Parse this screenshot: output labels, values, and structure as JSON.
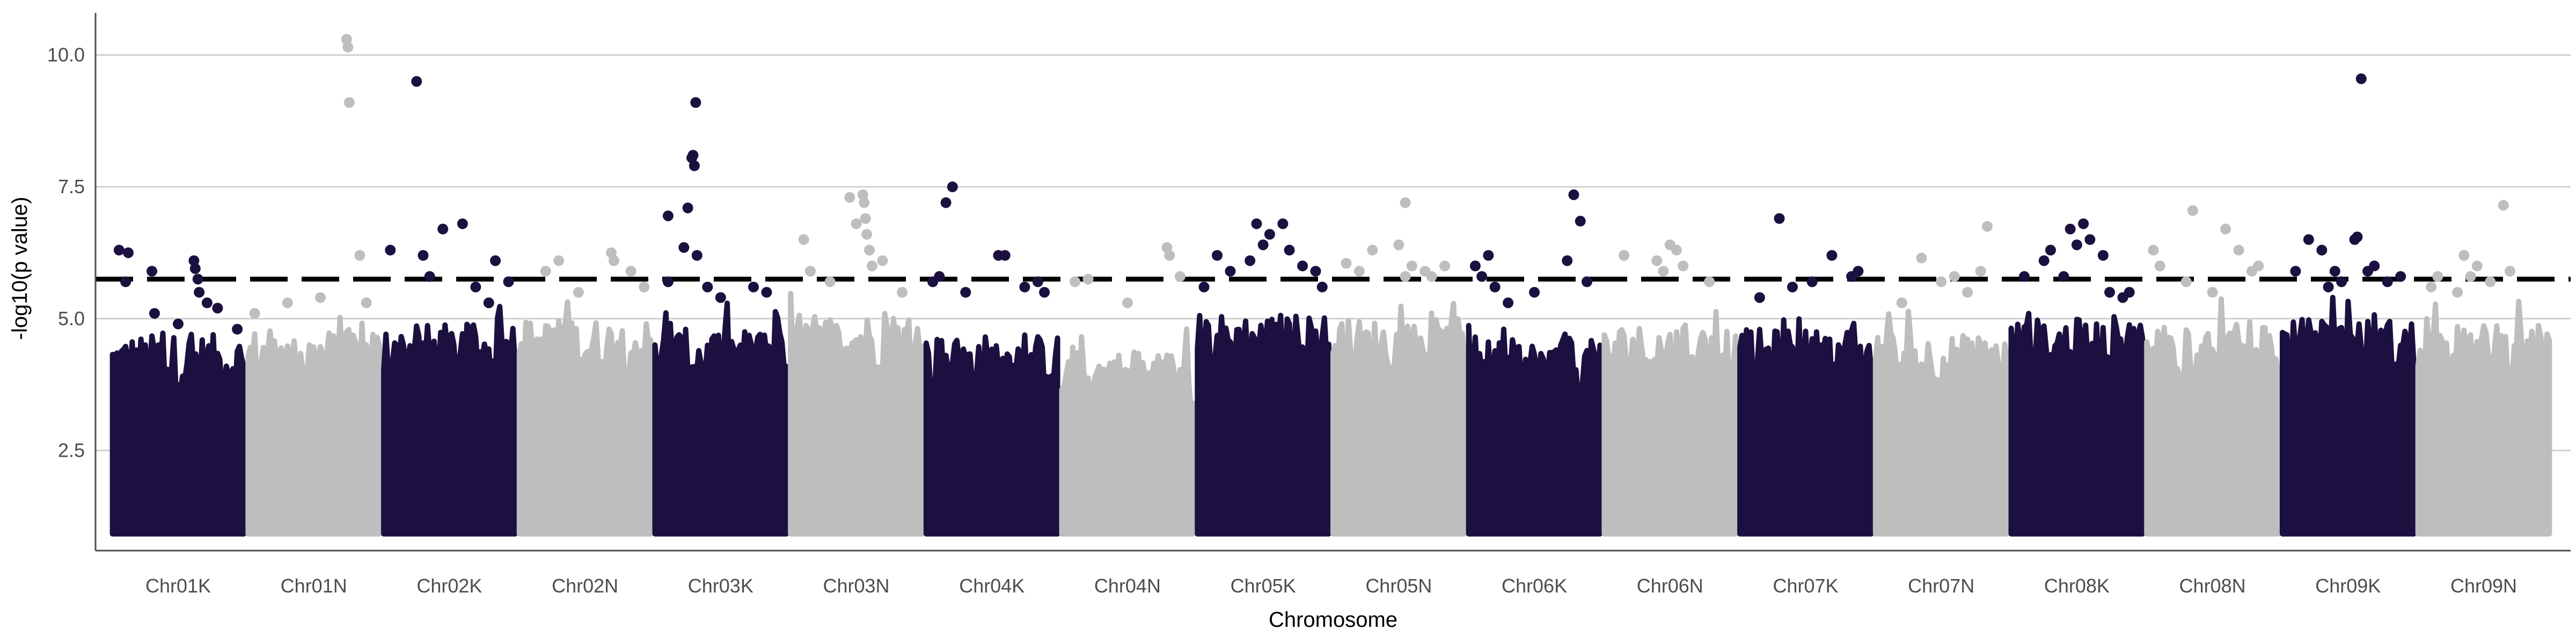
{
  "chart_data": {
    "type": "scatter",
    "title": "",
    "xlabel": "Chromosome",
    "ylabel": "-log10(p value)",
    "ylim": [
      0.6,
      10.8
    ],
    "yticks": [
      2.5,
      5.0,
      7.5,
      10.0
    ],
    "ytick_labels": [
      "2.5",
      "5.0",
      "7.5",
      "10.0"
    ],
    "threshold": 5.75,
    "grid": "horizontal major lines",
    "legend": "none",
    "colors": {
      "odd": "#1c1040",
      "even": "#bebebe",
      "threshold_line": "#000000"
    },
    "categories": [
      "Chr01K",
      "Chr01N",
      "Chr02K",
      "Chr02N",
      "Chr03K",
      "Chr03N",
      "Chr04K",
      "Chr04N",
      "Chr05K",
      "Chr05N",
      "Chr06K",
      "Chr06N",
      "Chr07K",
      "Chr07N",
      "Chr08K",
      "Chr08N",
      "Chr09K",
      "Chr09N"
    ],
    "series": [
      {
        "chromosome": "Chr01K",
        "color": "odd",
        "bulk_top": 4.5,
        "points": [
          [
            0.05,
            6.3
          ],
          [
            0.1,
            5.7
          ],
          [
            0.12,
            6.25
          ],
          [
            0.3,
            5.9
          ],
          [
            0.32,
            5.1
          ],
          [
            0.5,
            4.9
          ],
          [
            0.62,
            6.1
          ],
          [
            0.63,
            5.95
          ],
          [
            0.65,
            5.75
          ],
          [
            0.66,
            5.5
          ],
          [
            0.72,
            5.3
          ],
          [
            0.8,
            5.2
          ],
          [
            0.95,
            4.8
          ]
        ]
      },
      {
        "chromosome": "Chr01N",
        "color": "even",
        "bulk_top": 4.6,
        "points": [
          [
            0.05,
            5.1
          ],
          [
            0.3,
            5.3
          ],
          [
            0.55,
            5.4
          ],
          [
            0.75,
            10.3
          ],
          [
            0.76,
            10.15
          ],
          [
            0.77,
            9.1
          ],
          [
            0.85,
            6.2
          ],
          [
            0.9,
            5.3
          ]
        ]
      },
      {
        "chromosome": "Chr02K",
        "color": "odd",
        "bulk_top": 4.7,
        "points": [
          [
            0.05,
            6.3
          ],
          [
            0.25,
            9.5
          ],
          [
            0.3,
            6.2
          ],
          [
            0.35,
            5.8
          ],
          [
            0.45,
            6.7
          ],
          [
            0.6,
            6.8
          ],
          [
            0.7,
            5.6
          ],
          [
            0.8,
            5.3
          ],
          [
            0.85,
            6.1
          ],
          [
            0.95,
            5.7
          ]
        ]
      },
      {
        "chromosome": "Chr02N",
        "color": "even",
        "bulk_top": 4.8,
        "points": [
          [
            0.2,
            5.9
          ],
          [
            0.3,
            6.1
          ],
          [
            0.45,
            5.5
          ],
          [
            0.7,
            6.25
          ],
          [
            0.72,
            6.1
          ],
          [
            0.85,
            5.9
          ],
          [
            0.95,
            5.6
          ]
        ]
      },
      {
        "chromosome": "Chr03K",
        "color": "odd",
        "bulk_top": 4.6,
        "points": [
          [
            0.1,
            6.95
          ],
          [
            0.1,
            5.7
          ],
          [
            0.22,
            6.35
          ],
          [
            0.25,
            7.1
          ],
          [
            0.28,
            8.05
          ],
          [
            0.29,
            8.1
          ],
          [
            0.3,
            7.9
          ],
          [
            0.31,
            9.1
          ],
          [
            0.32,
            6.2
          ],
          [
            0.4,
            5.6
          ],
          [
            0.5,
            5.4
          ],
          [
            0.75,
            5.6
          ],
          [
            0.85,
            5.5
          ]
        ]
      },
      {
        "chromosome": "Chr03N",
        "color": "even",
        "bulk_top": 4.9,
        "points": [
          [
            0.1,
            6.5
          ],
          [
            0.15,
            5.9
          ],
          [
            0.3,
            5.7
          ],
          [
            0.45,
            7.3
          ],
          [
            0.5,
            6.8
          ],
          [
            0.55,
            7.35
          ],
          [
            0.56,
            7.2
          ],
          [
            0.57,
            6.9
          ],
          [
            0.58,
            6.6
          ],
          [
            0.6,
            6.3
          ],
          [
            0.62,
            6.0
          ],
          [
            0.7,
            6.1
          ],
          [
            0.85,
            5.5
          ]
        ]
      },
      {
        "chromosome": "Chr04K",
        "color": "odd",
        "bulk_top": 4.5,
        "points": [
          [
            0.05,
            5.7
          ],
          [
            0.1,
            5.8
          ],
          [
            0.15,
            7.2
          ],
          [
            0.2,
            7.5
          ],
          [
            0.3,
            5.5
          ],
          [
            0.55,
            6.2
          ],
          [
            0.6,
            6.2
          ],
          [
            0.75,
            5.6
          ],
          [
            0.85,
            5.7
          ],
          [
            0.9,
            5.5
          ]
        ]
      },
      {
        "chromosome": "Chr04N",
        "color": "even",
        "bulk_top": 4.2,
        "points": [
          [
            0.1,
            5.7
          ],
          [
            0.2,
            5.75
          ],
          [
            0.5,
            5.3
          ],
          [
            0.8,
            6.35
          ],
          [
            0.82,
            6.2
          ],
          [
            0.9,
            5.8
          ]
        ]
      },
      {
        "chromosome": "Chr05K",
        "color": "odd",
        "bulk_top": 4.9,
        "points": [
          [
            0.05,
            5.6
          ],
          [
            0.15,
            6.2
          ],
          [
            0.25,
            5.9
          ],
          [
            0.4,
            6.1
          ],
          [
            0.45,
            6.8
          ],
          [
            0.5,
            6.4
          ],
          [
            0.55,
            6.6
          ],
          [
            0.65,
            6.8
          ],
          [
            0.7,
            6.3
          ],
          [
            0.8,
            6.0
          ],
          [
            0.9,
            5.9
          ],
          [
            0.95,
            5.6
          ]
        ]
      },
      {
        "chromosome": "Chr05N",
        "color": "even",
        "bulk_top": 4.8,
        "points": [
          [
            0.1,
            6.05
          ],
          [
            0.2,
            5.9
          ],
          [
            0.3,
            6.3
          ],
          [
            0.5,
            6.4
          ],
          [
            0.55,
            5.8
          ],
          [
            0.6,
            6.0
          ],
          [
            0.7,
            5.9
          ],
          [
            0.75,
            5.8
          ],
          [
            0.85,
            6.0
          ]
        ]
      },
      {
        "chromosome": "Chr05N_extra",
        "color": "even",
        "bulk_top": 0,
        "points": [
          [
            0.55,
            7.2
          ]
        ]
      },
      {
        "chromosome": "Chr06K",
        "color": "odd",
        "bulk_top": 4.4,
        "points": [
          [
            0.05,
            6.0
          ],
          [
            0.1,
            5.8
          ],
          [
            0.15,
            6.2
          ],
          [
            0.2,
            5.6
          ],
          [
            0.3,
            5.3
          ],
          [
            0.5,
            5.5
          ],
          [
            0.75,
            6.1
          ],
          [
            0.8,
            7.35
          ],
          [
            0.85,
            6.85
          ],
          [
            0.9,
            5.7
          ]
        ]
      },
      {
        "chromosome": "Chr06N",
        "color": "even",
        "bulk_top": 4.7,
        "points": [
          [
            0.15,
            6.2
          ],
          [
            0.4,
            6.1
          ],
          [
            0.45,
            5.9
          ],
          [
            0.5,
            6.4
          ],
          [
            0.55,
            6.3
          ],
          [
            0.6,
            6.0
          ],
          [
            0.8,
            5.7
          ]
        ]
      },
      {
        "chromosome": "Chr07K",
        "color": "odd",
        "bulk_top": 4.6,
        "points": [
          [
            0.15,
            5.4
          ],
          [
            0.3,
            6.9
          ],
          [
            0.4,
            5.6
          ],
          [
            0.55,
            5.7
          ],
          [
            0.7,
            6.2
          ],
          [
            0.85,
            5.8
          ],
          [
            0.9,
            5.9
          ]
        ]
      },
      {
        "chromosome": "Chr07N",
        "color": "even",
        "bulk_top": 4.5,
        "points": [
          [
            0.2,
            5.3
          ],
          [
            0.35,
            6.15
          ],
          [
            0.5,
            5.7
          ],
          [
            0.6,
            5.8
          ],
          [
            0.7,
            5.5
          ],
          [
            0.8,
            5.9
          ],
          [
            0.85,
            6.75
          ]
        ]
      },
      {
        "chromosome": "Chr08K",
        "color": "odd",
        "bulk_top": 4.8,
        "points": [
          [
            0.1,
            5.8
          ],
          [
            0.25,
            6.1
          ],
          [
            0.3,
            6.3
          ],
          [
            0.4,
            5.8
          ],
          [
            0.45,
            6.7
          ],
          [
            0.5,
            6.4
          ],
          [
            0.55,
            6.8
          ],
          [
            0.6,
            6.5
          ],
          [
            0.7,
            6.2
          ],
          [
            0.75,
            5.5
          ],
          [
            0.85,
            5.4
          ],
          [
            0.9,
            5.5
          ]
        ]
      },
      {
        "chromosome": "Chr08N",
        "color": "even",
        "bulk_top": 4.7,
        "points": [
          [
            0.05,
            6.3
          ],
          [
            0.1,
            6.0
          ],
          [
            0.3,
            5.7
          ],
          [
            0.35,
            7.05
          ],
          [
            0.5,
            5.5
          ],
          [
            0.6,
            6.7
          ],
          [
            0.7,
            6.3
          ],
          [
            0.8,
            5.9
          ],
          [
            0.85,
            6.0
          ]
        ]
      },
      {
        "chromosome": "Chr09K",
        "color": "odd",
        "bulk_top": 4.8,
        "points": [
          [
            0.1,
            5.9
          ],
          [
            0.2,
            6.5
          ],
          [
            0.3,
            6.3
          ],
          [
            0.35,
            5.6
          ],
          [
            0.4,
            5.9
          ],
          [
            0.45,
            5.7
          ],
          [
            0.55,
            6.5
          ],
          [
            0.57,
            6.55
          ],
          [
            0.6,
            9.55
          ],
          [
            0.65,
            5.9
          ],
          [
            0.7,
            6.0
          ],
          [
            0.8,
            5.7
          ],
          [
            0.9,
            5.8
          ]
        ]
      },
      {
        "chromosome": "Chr09N",
        "color": "even",
        "bulk_top": 4.7,
        "points": [
          [
            0.1,
            5.6
          ],
          [
            0.15,
            5.8
          ],
          [
            0.3,
            5.5
          ],
          [
            0.35,
            6.2
          ],
          [
            0.4,
            5.8
          ],
          [
            0.45,
            6.0
          ],
          [
            0.55,
            5.7
          ],
          [
            0.65,
            7.15
          ],
          [
            0.7,
            5.9
          ]
        ]
      }
    ]
  }
}
